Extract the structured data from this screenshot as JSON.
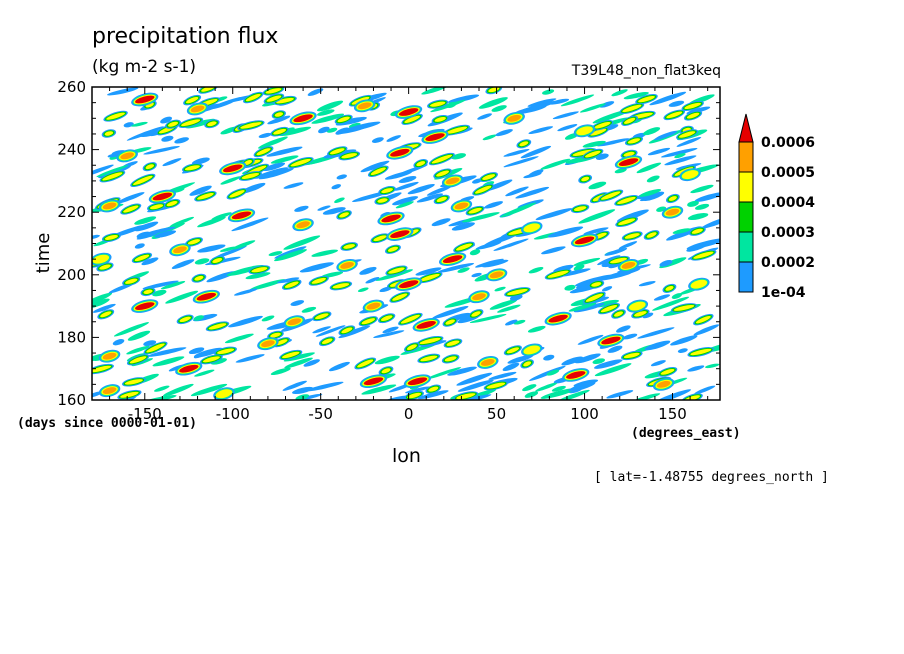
{
  "header": {
    "title": "precipitation flux",
    "units": "(kg m-2 s-1)",
    "run_name": "T39L48_non_flat3keq"
  },
  "axes": {
    "xlabel": "lon",
    "ylabel": "time",
    "x_units": "(degrees_east)",
    "y_units": "(days since 0000-01-01)"
  },
  "footer": {
    "lat_note": "[ lat=-1.48755 degrees_north ]"
  },
  "colors": {
    "background": "#ffffff",
    "level_1": "#1e9bff",
    "level_2": "#00e6a0",
    "level_3": "#00d200",
    "level_4": "#ffff00",
    "level_5": "#ffa000",
    "level_6": "#e60000"
  },
  "chart_data": {
    "type": "heatmap",
    "title": "precipitation flux",
    "subtitle": "(kg m-2 s-1)",
    "xlabel": "lon",
    "ylabel": "time",
    "xlim": [
      -180,
      177
    ],
    "ylim": [
      160,
      260
    ],
    "x_ticks": [
      -150,
      -100,
      -50,
      0,
      50,
      100,
      150
    ],
    "x_tick_labels": [
      "-150",
      "-100",
      "-50",
      "0",
      "50",
      "100",
      "150"
    ],
    "y_ticks": [
      160,
      180,
      200,
      220,
      240,
      260
    ],
    "y_tick_labels": [
      "160",
      "180",
      "200",
      "220",
      "240",
      "260"
    ],
    "grid": false,
    "colorbar": {
      "position": "right",
      "levels": [
        0.0001,
        0.0002,
        0.0003,
        0.0004,
        0.0005,
        0.0006
      ],
      "level_labels": [
        "1e-04",
        "0.0002",
        "0.0003",
        "0.0004",
        "0.0005",
        "0.0006"
      ],
      "colors": [
        "#1e9bff",
        "#00e6a0",
        "#00d200",
        "#ffff00",
        "#ffa000",
        "#e60000"
      ],
      "extend": "max"
    },
    "features": {
      "pattern": "eastward-propagating precipitation streaks (positive slope in lon-time)",
      "cells": [
        {
          "lon": -150,
          "time": 256,
          "level": 6
        },
        {
          "lon": -120,
          "time": 253,
          "level": 5
        },
        {
          "lon": -60,
          "time": 250,
          "level": 6
        },
        {
          "lon": -25,
          "time": 254,
          "level": 5
        },
        {
          "lon": 0,
          "time": 252,
          "level": 6
        },
        {
          "lon": 15,
          "time": 244,
          "level": 6
        },
        {
          "lon": 60,
          "time": 250,
          "level": 5
        },
        {
          "lon": 100,
          "time": 246,
          "level": 4
        },
        {
          "lon": -160,
          "time": 238,
          "level": 5
        },
        {
          "lon": -100,
          "time": 234,
          "level": 6
        },
        {
          "lon": -5,
          "time": 239,
          "level": 6
        },
        {
          "lon": 25,
          "time": 230,
          "level": 5
        },
        {
          "lon": 125,
          "time": 236,
          "level": 6
        },
        {
          "lon": 160,
          "time": 232,
          "level": 4
        },
        {
          "lon": -170,
          "time": 222,
          "level": 5
        },
        {
          "lon": -140,
          "time": 225,
          "level": 6
        },
        {
          "lon": -95,
          "time": 219,
          "level": 6
        },
        {
          "lon": -60,
          "time": 216,
          "level": 5
        },
        {
          "lon": -10,
          "time": 218,
          "level": 6
        },
        {
          "lon": -5,
          "time": 213,
          "level": 6
        },
        {
          "lon": 30,
          "time": 222,
          "level": 5
        },
        {
          "lon": 70,
          "time": 215,
          "level": 4
        },
        {
          "lon": 100,
          "time": 211,
          "level": 6
        },
        {
          "lon": 150,
          "time": 220,
          "level": 5
        },
        {
          "lon": -175,
          "time": 205,
          "level": 4
        },
        {
          "lon": -130,
          "time": 208,
          "level": 5
        },
        {
          "lon": -35,
          "time": 203,
          "level": 5
        },
        {
          "lon": 0,
          "time": 197,
          "level": 6
        },
        {
          "lon": 25,
          "time": 205,
          "level": 6
        },
        {
          "lon": 50,
          "time": 200,
          "level": 5
        },
        {
          "lon": 125,
          "time": 203,
          "level": 5
        },
        {
          "lon": 165,
          "time": 197,
          "level": 4
        },
        {
          "lon": -150,
          "time": 190,
          "level": 6
        },
        {
          "lon": -115,
          "time": 193,
          "level": 6
        },
        {
          "lon": -65,
          "time": 185,
          "level": 5
        },
        {
          "lon": -20,
          "time": 190,
          "level": 5
        },
        {
          "lon": 10,
          "time": 184,
          "level": 6
        },
        {
          "lon": 40,
          "time": 193,
          "level": 5
        },
        {
          "lon": 85,
          "time": 186,
          "level": 6
        },
        {
          "lon": 130,
          "time": 190,
          "level": 4
        },
        {
          "lon": -170,
          "time": 174,
          "level": 5
        },
        {
          "lon": -125,
          "time": 170,
          "level": 6
        },
        {
          "lon": -80,
          "time": 178,
          "level": 5
        },
        {
          "lon": -20,
          "time": 166,
          "level": 6
        },
        {
          "lon": 5,
          "time": 166,
          "level": 6
        },
        {
          "lon": 45,
          "time": 172,
          "level": 5
        },
        {
          "lon": 95,
          "time": 168,
          "level": 6
        },
        {
          "lon": 145,
          "time": 165,
          "level": 5
        },
        {
          "lon": -170,
          "time": 163,
          "level": 5
        },
        {
          "lon": -105,
          "time": 162,
          "level": 4
        },
        {
          "lon": 70,
          "time": 176,
          "level": 4
        },
        {
          "lon": 115,
          "time": 179,
          "level": 6
        }
      ]
    }
  }
}
